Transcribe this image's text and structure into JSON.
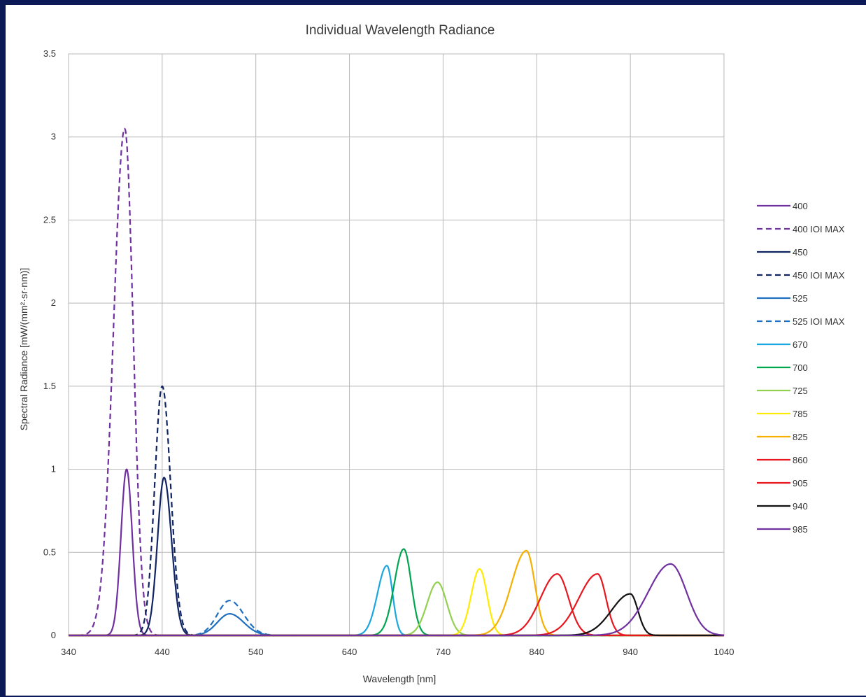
{
  "chart_data": {
    "type": "line",
    "title": "Individual Wavelength Radiance",
    "xlabel": "Wavelength [nm]",
    "ylabel": "Spectral Radiance [mW/(mm²·sr·nm)]",
    "xlim": [
      340,
      1040
    ],
    "ylim": [
      0,
      3.5
    ],
    "x_ticks": [
      "340",
      "440",
      "540",
      "640",
      "740",
      "840",
      "940",
      "1040"
    ],
    "y_ticks": [
      "0",
      "0.5",
      "1",
      "1.5",
      "2",
      "2.5",
      "3",
      "3.5"
    ],
    "grid": true,
    "legend_position": "right",
    "series": [
      {
        "name": "400",
        "color": "#7030a0",
        "dash": false,
        "peak_x": 402,
        "peak_y": 1.0,
        "sigma_left": 6,
        "sigma_right": 6
      },
      {
        "name": "400 IOI MAX",
        "color": "#7030a0",
        "dash": true,
        "peak_x": 400,
        "peak_y": 3.05,
        "sigma_left": 12,
        "sigma_right": 9
      },
      {
        "name": "450",
        "color": "#0f2461",
        "dash": false,
        "peak_x": 442,
        "peak_y": 0.95,
        "sigma_left": 7,
        "sigma_right": 8
      },
      {
        "name": "450 IOI MAX",
        "color": "#0f2461",
        "dash": true,
        "peak_x": 440,
        "peak_y": 1.5,
        "sigma_left": 8,
        "sigma_right": 9
      },
      {
        "name": "525",
        "color": "#1f6fc0",
        "dash": false,
        "peak_x": 512,
        "peak_y": 0.13,
        "sigma_left": 13,
        "sigma_right": 15
      },
      {
        "name": "525 IOI MAX",
        "color": "#1f6fc0",
        "dash": true,
        "peak_x": 512,
        "peak_y": 0.21,
        "sigma_left": 13,
        "sigma_right": 15
      },
      {
        "name": "670",
        "color": "#1aa7e0",
        "dash": false,
        "peak_x": 680,
        "peak_y": 0.42,
        "sigma_left": 10,
        "sigma_right": 6
      },
      {
        "name": "700",
        "color": "#00a550",
        "dash": false,
        "peak_x": 698,
        "peak_y": 0.52,
        "sigma_left": 10,
        "sigma_right": 8
      },
      {
        "name": "725",
        "color": "#92d050",
        "dash": false,
        "peak_x": 734,
        "peak_y": 0.32,
        "sigma_left": 11,
        "sigma_right": 10
      },
      {
        "name": "785",
        "color": "#ffeb00",
        "dash": false,
        "peak_x": 779,
        "peak_y": 0.4,
        "sigma_left": 9,
        "sigma_right": 8
      },
      {
        "name": "825",
        "color": "#f5b000",
        "dash": false,
        "peak_x": 829,
        "peak_y": 0.51,
        "sigma_left": 16,
        "sigma_right": 9
      },
      {
        "name": "860",
        "color": "#e8161e",
        "dash": false,
        "peak_x": 862,
        "peak_y": 0.37,
        "sigma_left": 18,
        "sigma_right": 12
      },
      {
        "name": "905",
        "color": "#e8161e",
        "dash": false,
        "peak_x": 905,
        "peak_y": 0.37,
        "sigma_left": 20,
        "sigma_right": 9
      },
      {
        "name": "940",
        "color": "#111111",
        "dash": false,
        "peak_x": 940,
        "peak_y": 0.25,
        "sigma_left": 20,
        "sigma_right": 8
      },
      {
        "name": "985",
        "color": "#7030a0",
        "dash": false,
        "peak_x": 983,
        "peak_y": 0.43,
        "sigma_left": 24,
        "sigma_right": 17
      }
    ]
  }
}
